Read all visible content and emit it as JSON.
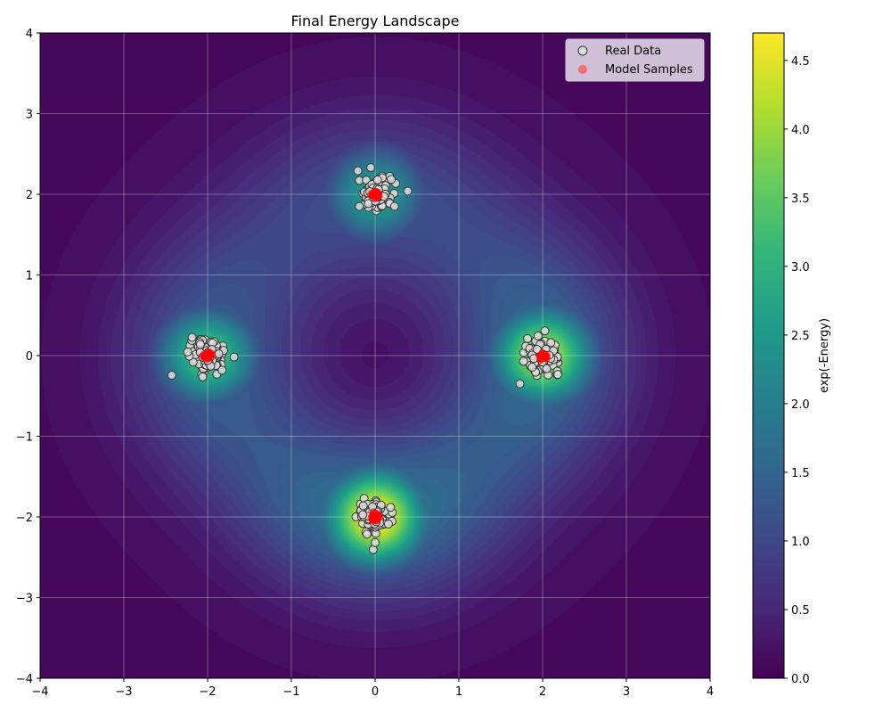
{
  "chart_data": {
    "type": "heatmap",
    "title": "Final Energy Landscape",
    "xlabel": "",
    "ylabel": "",
    "xlim": [
      -4,
      4
    ],
    "ylim": [
      -4,
      4
    ],
    "xticks": [
      "−4",
      "−3",
      "−2",
      "−1",
      "0",
      "1",
      "2",
      "3",
      "4"
    ],
    "yticks": [
      "−4",
      "−3",
      "−2",
      "−1",
      "0",
      "1",
      "2",
      "3",
      "4"
    ],
    "grid": true,
    "colorbar": {
      "label": "exp(-Energy)",
      "range": [
        0,
        4.7
      ],
      "ticks": [
        "0.0",
        "0.5",
        "1.0",
        "1.5",
        "2.0",
        "2.5",
        "3.0",
        "3.5",
        "4.0",
        "4.5"
      ],
      "colormap": "viridis"
    },
    "modes": [
      {
        "center": [
          0,
          -2
        ],
        "peak": 4.7
      },
      {
        "center": [
          2,
          0
        ],
        "peak": 4.1
      },
      {
        "center": [
          -2,
          0
        ],
        "peak": 3.3
      },
      {
        "center": [
          0,
          2
        ],
        "peak": 2.6
      }
    ],
    "series": [
      {
        "name": "Real Data",
        "type": "scatter",
        "color": "#dddddd",
        "edge": "#333333",
        "clusters": [
          [
            0,
            2
          ],
          [
            2,
            0
          ],
          [
            -2,
            0
          ],
          [
            0,
            -2
          ]
        ],
        "std": 0.1,
        "points_per_cluster": 120
      },
      {
        "name": "Model Samples",
        "type": "scatter",
        "color": "#ff0000",
        "clusters": [
          [
            0,
            2
          ],
          [
            2,
            0
          ],
          [
            -2,
            0
          ],
          [
            0,
            -2
          ]
        ],
        "std": 0.02,
        "points_per_cluster": 40
      }
    ],
    "legend": {
      "position": "top-right",
      "entries": [
        "Real Data",
        "Model Samples"
      ]
    }
  }
}
